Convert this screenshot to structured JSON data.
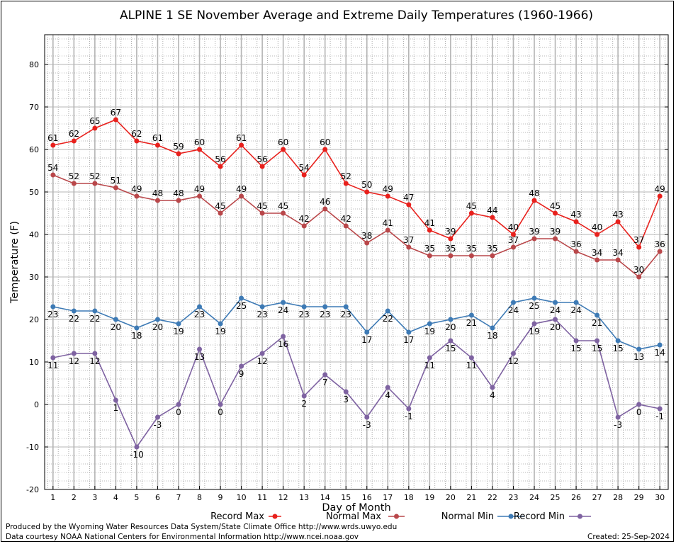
{
  "chart_data": {
    "type": "line",
    "title": "ALPINE 1 SE November Average and Extreme Daily Temperatures (1960-1966)",
    "xlabel": "Day of Month",
    "ylabel": "Temperature (F)",
    "x": [
      1,
      2,
      3,
      4,
      5,
      6,
      7,
      8,
      9,
      10,
      11,
      12,
      13,
      14,
      15,
      16,
      17,
      18,
      19,
      20,
      21,
      22,
      23,
      24,
      25,
      26,
      27,
      28,
      29,
      30
    ],
    "xlim": [
      0.6,
      30.4
    ],
    "ylim": [
      -20,
      87
    ],
    "y_ticks": [
      -20,
      -10,
      0,
      10,
      20,
      30,
      40,
      50,
      60,
      70,
      80
    ],
    "grid": true,
    "legend_position": "bottom",
    "series": [
      {
        "name": "Record Max",
        "color": "#e8201c",
        "label_position": "above",
        "values": [
          61,
          62,
          65,
          67,
          62,
          61,
          59,
          60,
          56,
          61,
          56,
          60,
          54,
          60,
          52,
          50,
          49,
          47,
          41,
          39,
          45,
          44,
          40,
          48,
          45,
          43,
          40,
          43,
          37,
          49
        ]
      },
      {
        "name": "Normal Max",
        "color": "#b9474a",
        "label_position": "above",
        "values": [
          54,
          52,
          52,
          51,
          49,
          48,
          48,
          49,
          45,
          49,
          45,
          45,
          42,
          46,
          42,
          38,
          41,
          37,
          35,
          35,
          35,
          35,
          37,
          39,
          39,
          36,
          34,
          34,
          30,
          36
        ]
      },
      {
        "name": "Normal Min",
        "color": "#3d7ab5",
        "label_position": "below",
        "values": [
          23,
          22,
          22,
          20,
          18,
          20,
          19,
          23,
          19,
          25,
          23,
          24,
          23,
          23,
          23,
          17,
          22,
          17,
          19,
          20,
          21,
          18,
          24,
          25,
          24,
          24,
          21,
          15,
          13,
          14
        ]
      },
      {
        "name": "Record Min",
        "color": "#7e62a1",
        "label_position": "below",
        "values": [
          11,
          12,
          12,
          1,
          -10,
          -3,
          0,
          13,
          0,
          9,
          12,
          16,
          2,
          7,
          3,
          -3,
          4,
          -1,
          11,
          15,
          11,
          4,
          12,
          19,
          20,
          15,
          15,
          -3,
          0,
          -1
        ]
      }
    ]
  },
  "footer": {
    "producer": "Produced by the Wyoming Water Resources Data System/State Climate Office http://www.wrds.uwyo.edu",
    "courtesy": "Data courtesy NOAA National Centers for Environmental Information http://www.ncei.noaa.gov",
    "created": "Created:  25-Sep-2024"
  }
}
